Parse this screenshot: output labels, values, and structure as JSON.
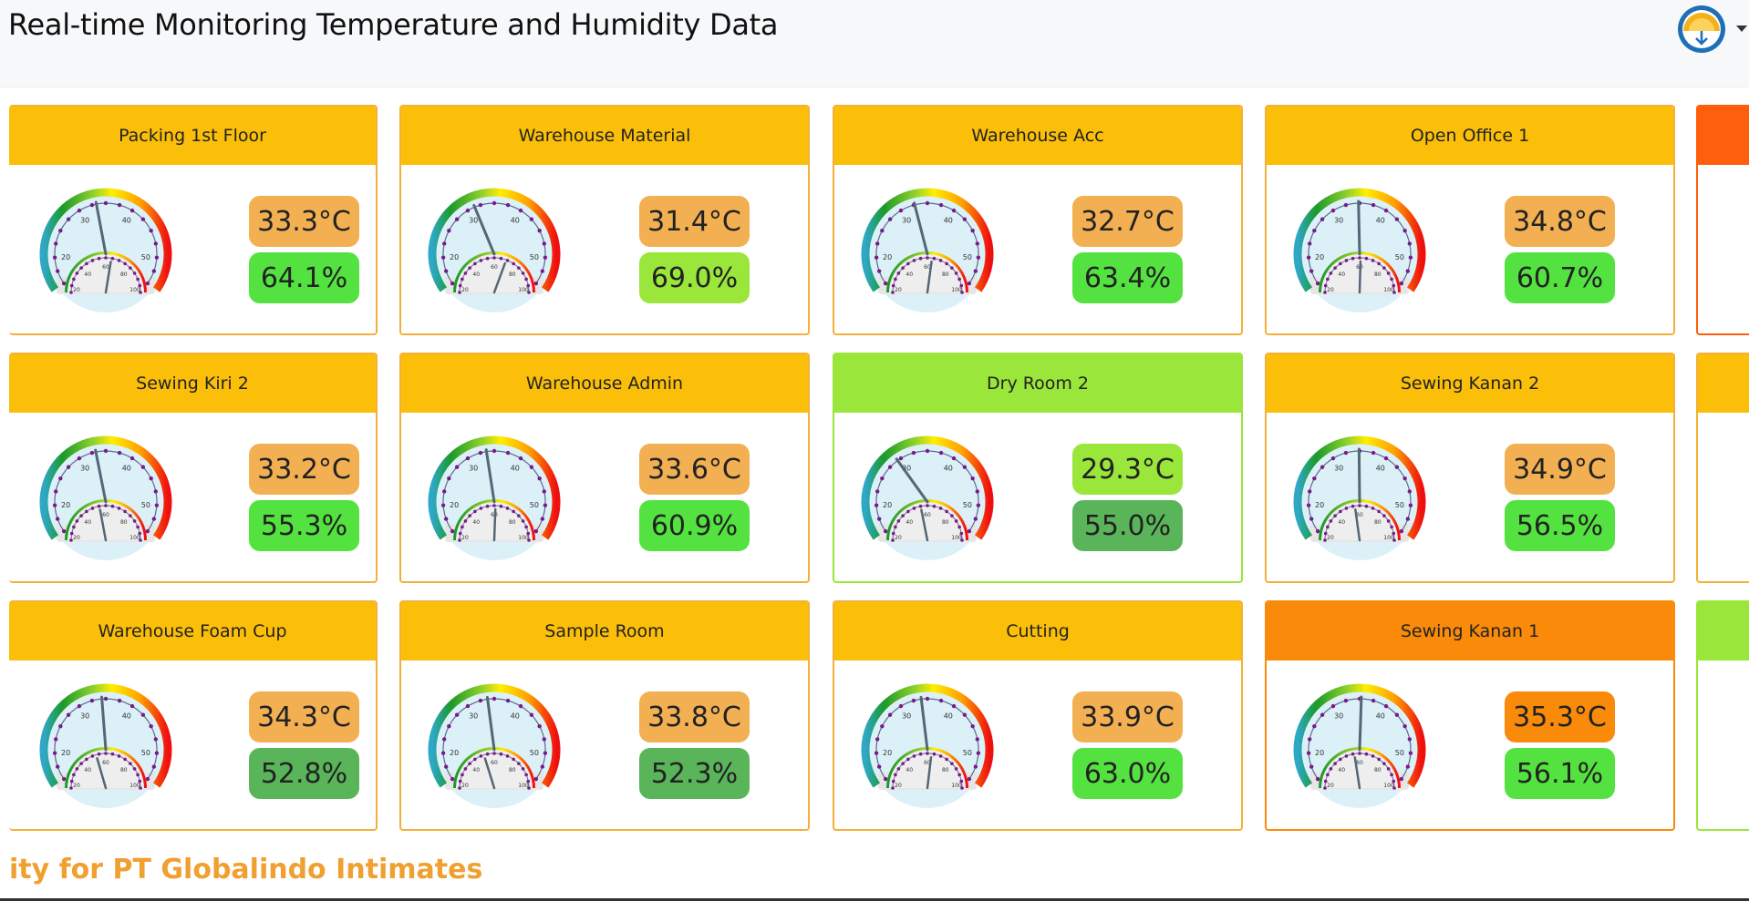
{
  "header": {
    "title": "Real-time Monitoring Temperature and Humidity Data"
  },
  "colors": {
    "header_default": "#fbbf09",
    "header_normal": "#9ae63a",
    "header_warning": "#fa8a0a",
    "header_alert": "#fe5f0c",
    "border_default": "#f4b03a",
    "border_normal": "#9ae63a",
    "border_warning": "#fa8a0a",
    "border_alert": "#fe5f0c",
    "temp_warm": "#f2b052",
    "temp_hot": "#fa8a0a",
    "temp_ok": "#9ae63a",
    "hum_green": "#53e23f",
    "hum_lime": "#9ae63a",
    "hum_dark": "#5ab55a"
  },
  "cards": [
    {
      "name": "Packing 1st Floor",
      "temperature": "33.3°C",
      "humidity": "64.1%",
      "temp_value": 33.3,
      "hum_value": 64.1,
      "header_color": "header_default",
      "border_color": "border_default",
      "temp_color": "temp_warm",
      "hum_color": "hum_green"
    },
    {
      "name": "Warehouse Material",
      "temperature": "31.4°C",
      "humidity": "69.0%",
      "temp_value": 31.4,
      "hum_value": 69.0,
      "header_color": "header_default",
      "border_color": "border_default",
      "temp_color": "temp_warm",
      "hum_color": "hum_lime"
    },
    {
      "name": "Warehouse Acc",
      "temperature": "32.7°C",
      "humidity": "63.4%",
      "temp_value": 32.7,
      "hum_value": 63.4,
      "header_color": "header_default",
      "border_color": "border_default",
      "temp_color": "temp_warm",
      "hum_color": "hum_green"
    },
    {
      "name": "Open Office 1",
      "temperature": "34.8°C",
      "humidity": "60.7%",
      "temp_value": 34.8,
      "hum_value": 60.7,
      "header_color": "header_default",
      "border_color": "border_default",
      "temp_color": "temp_warm",
      "hum_color": "hum_green"
    },
    {
      "name": "",
      "temperature": "",
      "humidity": "",
      "temp_value": null,
      "hum_value": null,
      "header_color": "header_alert",
      "border_color": "border_alert",
      "temp_color": "temp_warm",
      "hum_color": "hum_green"
    },
    {
      "name": "Sewing Kiri 2",
      "temperature": "33.2°C",
      "humidity": "55.3%",
      "temp_value": 33.2,
      "hum_value": 55.3,
      "header_color": "header_default",
      "border_color": "border_default",
      "temp_color": "temp_warm",
      "hum_color": "hum_green"
    },
    {
      "name": "Warehouse Admin",
      "temperature": "33.6°C",
      "humidity": "60.9%",
      "temp_value": 33.6,
      "hum_value": 60.9,
      "header_color": "header_default",
      "border_color": "border_default",
      "temp_color": "temp_warm",
      "hum_color": "hum_green"
    },
    {
      "name": "Dry Room 2",
      "temperature": "29.3°C",
      "humidity": "55.0%",
      "temp_value": 29.3,
      "hum_value": 55.0,
      "header_color": "header_normal",
      "border_color": "border_normal",
      "temp_color": "temp_ok",
      "hum_color": "hum_dark"
    },
    {
      "name": "Sewing Kanan 2",
      "temperature": "34.9°C",
      "humidity": "56.5%",
      "temp_value": 34.9,
      "hum_value": 56.5,
      "header_color": "header_default",
      "border_color": "border_default",
      "temp_color": "temp_warm",
      "hum_color": "hum_green"
    },
    {
      "name": "",
      "temperature": "",
      "humidity": "",
      "temp_value": null,
      "hum_value": null,
      "header_color": "header_default",
      "border_color": "border_default",
      "temp_color": "temp_warm",
      "hum_color": "hum_green"
    },
    {
      "name": "Warehouse Foam Cup",
      "temperature": "34.3°C",
      "humidity": "52.8%",
      "temp_value": 34.3,
      "hum_value": 52.8,
      "header_color": "header_default",
      "border_color": "border_default",
      "temp_color": "temp_warm",
      "hum_color": "hum_dark"
    },
    {
      "name": "Sample Room",
      "temperature": "33.8°C",
      "humidity": "52.3%",
      "temp_value": 33.8,
      "hum_value": 52.3,
      "header_color": "header_default",
      "border_color": "border_default",
      "temp_color": "temp_warm",
      "hum_color": "hum_dark"
    },
    {
      "name": "Cutting",
      "temperature": "33.9°C",
      "humidity": "63.0%",
      "temp_value": 33.9,
      "hum_value": 63.0,
      "header_color": "header_default",
      "border_color": "border_default",
      "temp_color": "temp_warm",
      "hum_color": "hum_green"
    },
    {
      "name": "Sewing Kanan 1",
      "temperature": "35.3°C",
      "humidity": "56.1%",
      "temp_value": 35.3,
      "hum_value": 56.1,
      "header_color": "header_warning",
      "border_color": "border_warning",
      "temp_color": "temp_hot",
      "hum_color": "hum_green"
    },
    {
      "name": "",
      "temperature": "",
      "humidity": "",
      "temp_value": null,
      "hum_value": null,
      "header_color": "header_normal",
      "border_color": "border_normal",
      "temp_color": "temp_warm",
      "hum_color": "hum_green"
    }
  ],
  "gauge": {
    "temp_labels": [
      "20",
      "30",
      "40",
      "50"
    ],
    "hum_labels": [
      "40",
      "60",
      "80"
    ],
    "hum_min_label": "20",
    "hum_max_label": "100"
  },
  "footer": {
    "text": "ity for PT Globalindo Intimates"
  },
  "icons": {
    "logo": "university-logo-icon",
    "dropdown": "caret-down-icon"
  }
}
